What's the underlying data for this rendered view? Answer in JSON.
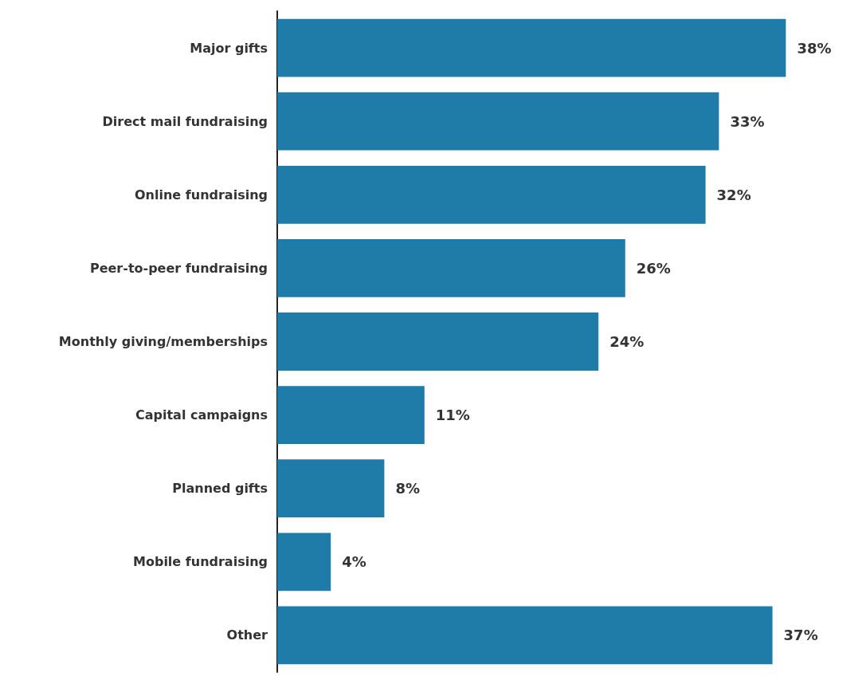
{
  "chart_data": {
    "type": "bar",
    "orientation": "horizontal",
    "categories": [
      "Major gifts",
      "Direct mail fundraising",
      "Online fundraising",
      "Peer-to-peer fundraising",
      "Monthly giving/memberships",
      "Capital campaigns",
      "Planned gifts",
      "Mobile fundraising",
      "Other"
    ],
    "values": [
      38,
      33,
      32,
      26,
      24,
      11,
      8,
      4,
      37
    ],
    "value_labels": [
      "38%",
      "33%",
      "32%",
      "26%",
      "24%",
      "11%",
      "8%",
      "4%",
      "37%"
    ],
    "color": "#1f7ca8"
  }
}
